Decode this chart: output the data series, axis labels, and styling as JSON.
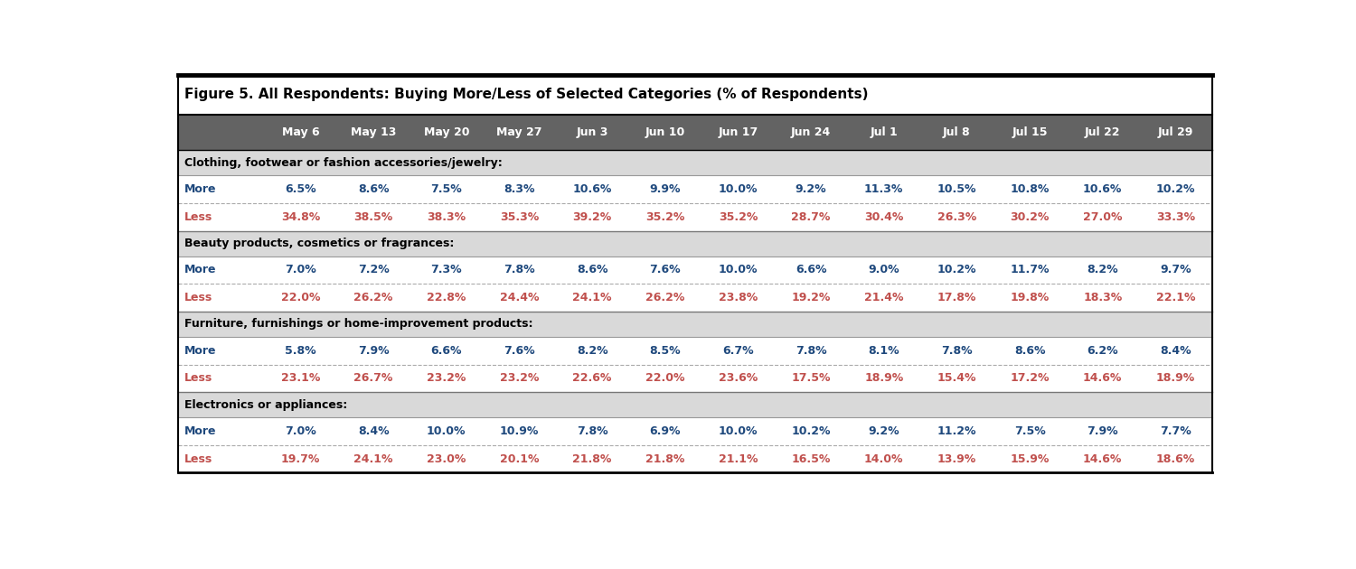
{
  "title": "Figure 5. All Respondents: Buying More/Less of Selected Categories (% of Respondents)",
  "columns": [
    "",
    "May 6",
    "May 13",
    "May 20",
    "May 27",
    "Jun 3",
    "Jun 10",
    "Jun 17",
    "Jun 24",
    "Jul 1",
    "Jul 8",
    "Jul 15",
    "Jul 22",
    "Jul 29"
  ],
  "header_bg": "#636363",
  "header_fg": "#ffffff",
  "section_bg": "#d9d9d9",
  "section_fg": "#000000",
  "more_color": "#1f497d",
  "less_color": "#c0504d",
  "title_fontsize": 11,
  "header_fontsize": 9,
  "data_fontsize": 9,
  "section_fontsize": 9,
  "sections": [
    {
      "label": "Clothing, footwear or fashion accessories/jewelry:",
      "rows": [
        {
          "label": "More",
          "values": [
            "6.5%",
            "8.6%",
            "7.5%",
            "8.3%",
            "10.6%",
            "9.9%",
            "10.0%",
            "9.2%",
            "11.3%",
            "10.5%",
            "10.8%",
            "10.6%",
            "10.2%"
          ]
        },
        {
          "label": "Less",
          "values": [
            "34.8%",
            "38.5%",
            "38.3%",
            "35.3%",
            "39.2%",
            "35.2%",
            "35.2%",
            "28.7%",
            "30.4%",
            "26.3%",
            "30.2%",
            "27.0%",
            "33.3%"
          ]
        }
      ]
    },
    {
      "label": "Beauty products, cosmetics or fragrances:",
      "rows": [
        {
          "label": "More",
          "values": [
            "7.0%",
            "7.2%",
            "7.3%",
            "7.8%",
            "8.6%",
            "7.6%",
            "10.0%",
            "6.6%",
            "9.0%",
            "10.2%",
            "11.7%",
            "8.2%",
            "9.7%"
          ]
        },
        {
          "label": "Less",
          "values": [
            "22.0%",
            "26.2%",
            "22.8%",
            "24.4%",
            "24.1%",
            "26.2%",
            "23.8%",
            "19.2%",
            "21.4%",
            "17.8%",
            "19.8%",
            "18.3%",
            "22.1%"
          ]
        }
      ]
    },
    {
      "label": "Furniture, furnishings or home-improvement products:",
      "rows": [
        {
          "label": "More",
          "values": [
            "5.8%",
            "7.9%",
            "6.6%",
            "7.6%",
            "8.2%",
            "8.5%",
            "6.7%",
            "7.8%",
            "8.1%",
            "7.8%",
            "8.6%",
            "6.2%",
            "8.4%"
          ]
        },
        {
          "label": "Less",
          "values": [
            "23.1%",
            "26.7%",
            "23.2%",
            "23.2%",
            "22.6%",
            "22.0%",
            "23.6%",
            "17.5%",
            "18.9%",
            "15.4%",
            "17.2%",
            "14.6%",
            "18.9%"
          ]
        }
      ]
    },
    {
      "label": "Electronics or appliances:",
      "rows": [
        {
          "label": "More",
          "values": [
            "7.0%",
            "8.4%",
            "10.0%",
            "10.9%",
            "7.8%",
            "6.9%",
            "10.0%",
            "10.2%",
            "9.2%",
            "11.2%",
            "7.5%",
            "7.9%",
            "7.7%"
          ]
        },
        {
          "label": "Less",
          "values": [
            "19.7%",
            "24.1%",
            "23.0%",
            "20.1%",
            "21.8%",
            "21.8%",
            "21.1%",
            "16.5%",
            "14.0%",
            "13.9%",
            "15.9%",
            "14.6%",
            "18.6%"
          ]
        }
      ]
    }
  ]
}
